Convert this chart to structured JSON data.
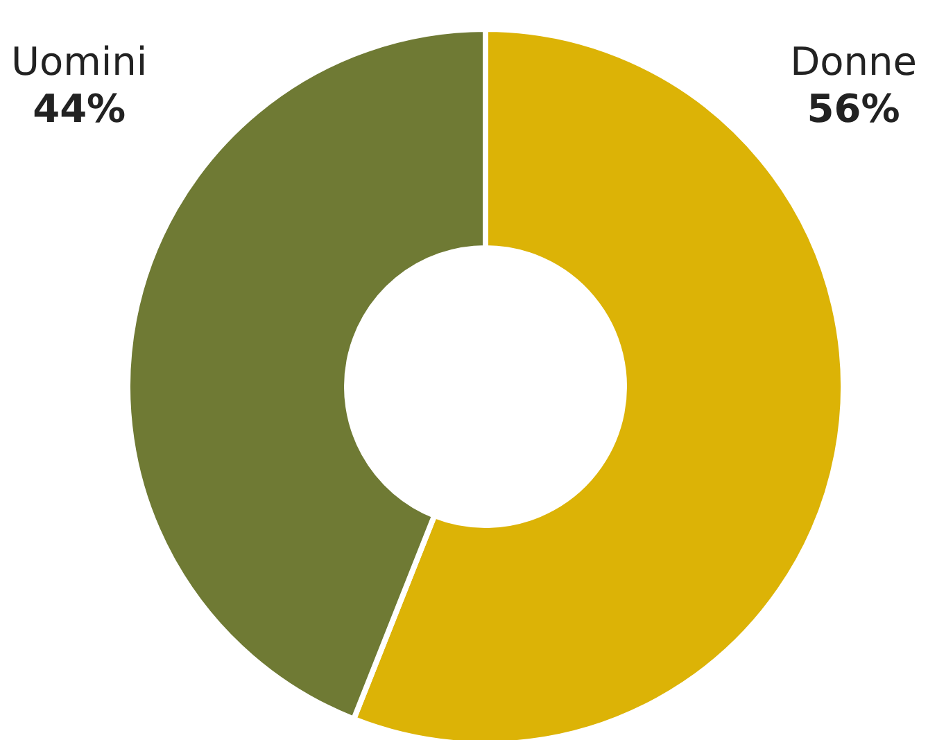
{
  "chart_data": {
    "type": "donut",
    "categories": [
      "Donne",
      "Uomini"
    ],
    "values": [
      56,
      44
    ],
    "colors": [
      "#dcb306",
      "#6f7a34"
    ],
    "value_labels": [
      "56%",
      "44%"
    ]
  }
}
